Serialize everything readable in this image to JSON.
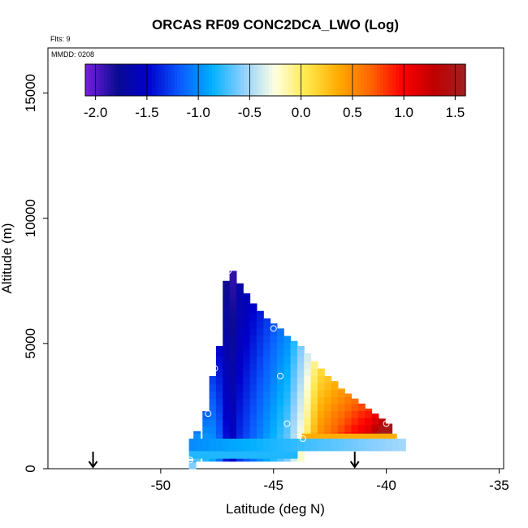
{
  "chart_data": {
    "type": "heatmap",
    "title": "ORCAS RF09 CONC2DCA_LWO (Log)",
    "annotations": {
      "flights": "Flts: 9",
      "date": "MMDD: 0208"
    },
    "xlabel": "Latitude (deg N)",
    "ylabel": "Altitude (m)",
    "xlim": [
      -55,
      -34.8
    ],
    "ylim": [
      0,
      16800
    ],
    "xticks": [
      -50,
      -45,
      -40,
      -35
    ],
    "xtick_labels": [
      "-50",
      "-45",
      "-40",
      "-35"
    ],
    "yticks": [
      0,
      5000,
      10000,
      15000
    ],
    "ytick_labels": [
      "0",
      "5000",
      "10000",
      "15000"
    ],
    "grid": false,
    "colorbar": {
      "location": "top",
      "range": [
        -2.1,
        1.6
      ],
      "ticks": [
        -2.0,
        -1.5,
        -1.0,
        -0.5,
        0.0,
        0.5,
        1.0,
        1.5
      ],
      "tick_labels": [
        "-2.0",
        "-1.5",
        "-1.0",
        "-0.5",
        "0.0",
        "0.5",
        "1.0",
        "1.5"
      ],
      "colors": [
        "#7a1ee0",
        "#0b0b92",
        "#0000cc",
        "#0a5cff",
        "#00b0ff",
        "#8fd0ff",
        "#ffffe0",
        "#ffe84a",
        "#ffaa00",
        "#ff6600",
        "#ff0000",
        "#c00000",
        "#a02020"
      ]
    },
    "markers": {
      "arrows_latitude": [
        -53.0,
        -41.4
      ]
    },
    "field": {
      "description_cells": "latitude bins x altitude bins with log10 concentration values",
      "columns": [
        {
          "lat": -48.6,
          "top": 300,
          "bottom": 0,
          "value": -0.8
        },
        {
          "lat": -48.4,
          "top": 1500,
          "bottom": 300,
          "value": -0.9
        },
        {
          "lat": -48.0,
          "top": 2300,
          "bottom": 300,
          "value": -1.0
        },
        {
          "lat": -47.7,
          "top": 3700,
          "bottom": 300,
          "value": -1.1
        },
        {
          "lat": -47.4,
          "top": 4900,
          "bottom": 300,
          "value": -1.3
        },
        {
          "lat": -47.1,
          "top": 7500,
          "bottom": 300,
          "value": -1.6
        },
        {
          "lat": -46.8,
          "top": 7900,
          "bottom": 300,
          "value": -1.7
        },
        {
          "lat": -46.5,
          "top": 7400,
          "bottom": 300,
          "value": -1.5
        },
        {
          "lat": -46.2,
          "top": 7000,
          "bottom": 300,
          "value": -1.4
        },
        {
          "lat": -45.9,
          "top": 6600,
          "bottom": 300,
          "value": -1.3
        },
        {
          "lat": -45.6,
          "top": 6300,
          "bottom": 300,
          "value": -1.2
        },
        {
          "lat": -45.3,
          "top": 6000,
          "bottom": 300,
          "value": -1.1
        },
        {
          "lat": -45.0,
          "top": 5800,
          "bottom": 300,
          "value": -1.0
        },
        {
          "lat": -44.7,
          "top": 5600,
          "bottom": 300,
          "value": -0.9
        },
        {
          "lat": -44.4,
          "top": 5300,
          "bottom": 300,
          "value": -0.8
        },
        {
          "lat": -44.1,
          "top": 5100,
          "bottom": 300,
          "value": -0.6
        },
        {
          "lat": -43.8,
          "top": 4900,
          "bottom": 300,
          "value": -0.4
        },
        {
          "lat": -43.5,
          "top": 4600,
          "bottom": 1200,
          "value": -0.2
        },
        {
          "lat": -43.2,
          "top": 4300,
          "bottom": 1200,
          "value": 0.1
        },
        {
          "lat": -42.9,
          "top": 4000,
          "bottom": 1200,
          "value": 0.3
        },
        {
          "lat": -42.6,
          "top": 3700,
          "bottom": 1200,
          "value": 0.4
        },
        {
          "lat": -42.3,
          "top": 3500,
          "bottom": 1200,
          "value": 0.5
        },
        {
          "lat": -42.0,
          "top": 3200,
          "bottom": 1200,
          "value": 0.6
        },
        {
          "lat": -41.7,
          "top": 3000,
          "bottom": 1200,
          "value": 0.7
        },
        {
          "lat": -41.4,
          "top": 2800,
          "bottom": 1200,
          "value": 0.8
        },
        {
          "lat": -41.1,
          "top": 2600,
          "bottom": 1200,
          "value": 0.9
        },
        {
          "lat": -40.8,
          "top": 2400,
          "bottom": 1200,
          "value": 1.0
        },
        {
          "lat": -40.5,
          "top": 2200,
          "bottom": 1200,
          "value": 1.2
        },
        {
          "lat": -40.2,
          "top": 2000,
          "bottom": 1200,
          "value": 1.4
        },
        {
          "lat": -39.9,
          "top": 1800,
          "bottom": 1200,
          "value": 1.5
        }
      ]
    },
    "sample_points": [
      {
        "lat": -47.0,
        "alt": 7900
      },
      {
        "lat": -47.4,
        "alt": 5900
      },
      {
        "lat": -47.6,
        "alt": 4000
      },
      {
        "lat": -47.9,
        "alt": 2200
      },
      {
        "lat": -45.0,
        "alt": 5600
      },
      {
        "lat": -44.7,
        "alt": 3700
      },
      {
        "lat": -44.4,
        "alt": 1800
      },
      {
        "lat": -43.7,
        "alt": 1200
      },
      {
        "lat": -40.0,
        "alt": 1800
      },
      {
        "lat": -48.7,
        "alt": 350
      }
    ]
  }
}
